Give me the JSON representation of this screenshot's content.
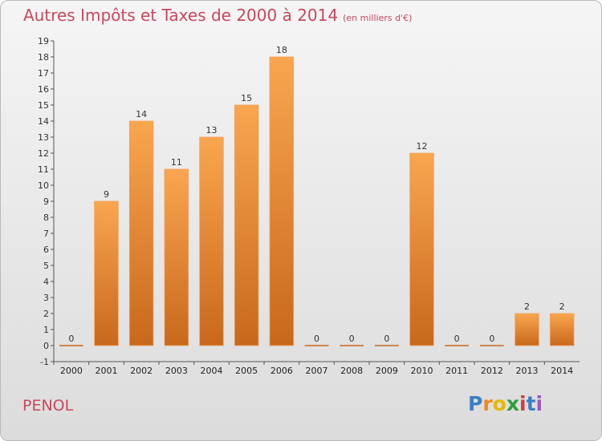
{
  "header": {
    "title": "Autres Impôts et Taxes de 2000 à 2014",
    "unit": "(en milliers d'€)"
  },
  "footer": {
    "commune": "PENOL",
    "logo_letters": [
      "P",
      "r",
      "o",
      "x",
      "i",
      "t",
      "i"
    ],
    "logo_colors": [
      "#3a7fc4",
      "#f08a1c",
      "#e6b800",
      "#2e9e3e",
      "#d93a3a",
      "#3a7fc4",
      "#9b59b6"
    ]
  },
  "chart_data": {
    "type": "bar",
    "categories": [
      "2000",
      "2001",
      "2002",
      "2003",
      "2004",
      "2005",
      "2006",
      "2007",
      "2008",
      "2009",
      "2010",
      "2011",
      "2012",
      "2013",
      "2014"
    ],
    "values": [
      0,
      9,
      14,
      11,
      13,
      15,
      18,
      0,
      0,
      0,
      12,
      0,
      0,
      2,
      2
    ],
    "data_labels": [
      "0",
      "9",
      "14",
      "11",
      "13",
      "15",
      "18",
      "0",
      "0",
      "0",
      "12",
      "0",
      "0",
      "2",
      "2"
    ],
    "title": "Autres Impôts et Taxes de 2000 à 2014",
    "ylim": [
      -1,
      19
    ],
    "yticks": [
      "-1",
      "0",
      "1",
      "2",
      "3",
      "4",
      "5",
      "6",
      "7",
      "8",
      "9",
      "10",
      "11",
      "12",
      "13",
      "14",
      "15",
      "16",
      "17",
      "18",
      "19"
    ],
    "grid": false,
    "bar_color_light": "#f9a650",
    "bar_color_dark": "#c8681c"
  }
}
